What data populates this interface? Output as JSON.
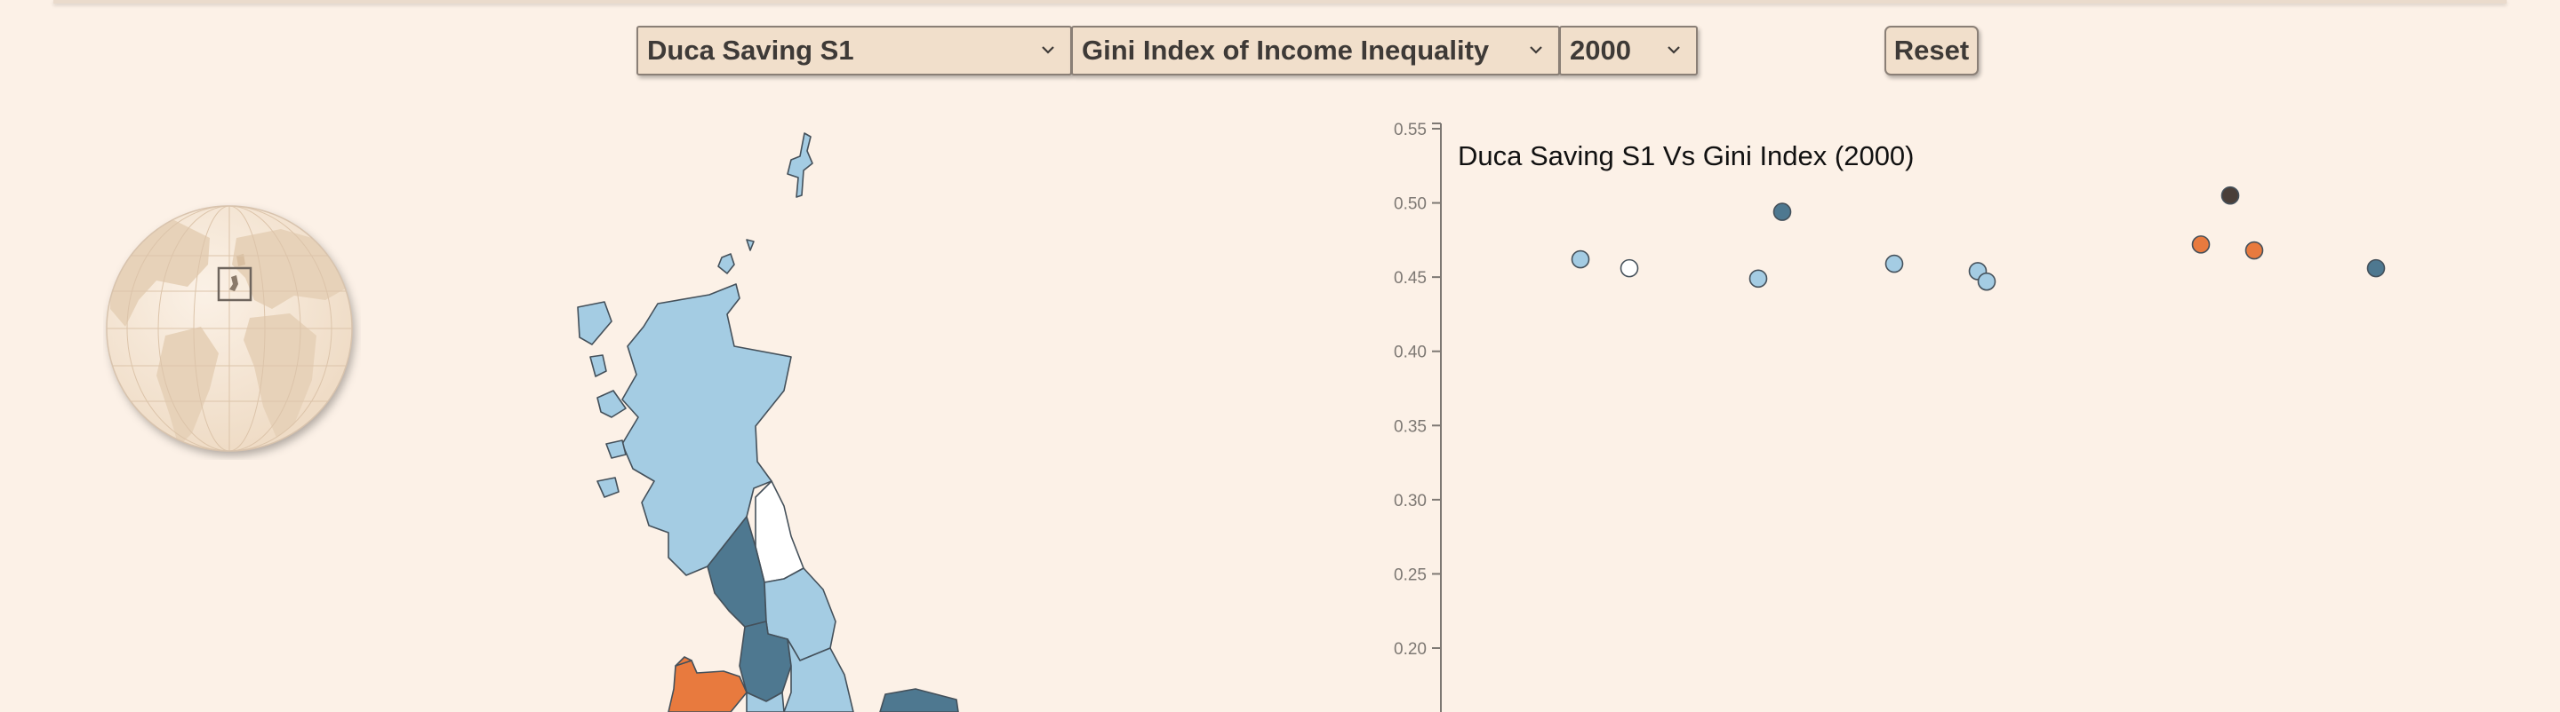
{
  "controls": {
    "variable": {
      "value": "Duca Saving S1"
    },
    "indicator": {
      "value": "Gini Index of Income Inequality"
    },
    "year": {
      "value": "2000"
    },
    "reset_label": "Reset"
  },
  "colors": {
    "background": "#fcf1e7",
    "light_blue": "#a4cce3",
    "dark_blue": "#4e7890",
    "orange": "#e87a3e",
    "dark_brown": "#4a3f39",
    "white": "#ffffff"
  },
  "chart_data": {
    "type": "scatter",
    "title": "Duca Saving S1 Vs Gini Index (2000)",
    "xlabel": "",
    "ylabel": "",
    "ylim": [
      0.15,
      0.55
    ],
    "yticks": [
      0.2,
      0.25,
      0.3,
      0.35,
      0.4,
      0.45,
      0.5,
      0.55
    ],
    "ytick_labels": [
      "0.20",
      "0.25",
      "0.30",
      "0.35",
      "0.40",
      "0.45",
      "0.50",
      "0.55"
    ],
    "x_axis_visible": false,
    "grid": false,
    "points": [
      {
        "x": 1,
        "y": 0.462,
        "color": "light_blue"
      },
      {
        "x": 2,
        "y": 0.456,
        "color": "white"
      },
      {
        "x": 3,
        "y": 0.449,
        "color": "light_blue"
      },
      {
        "x": 4,
        "y": 0.494,
        "color": "dark_blue"
      },
      {
        "x": 5,
        "y": 0.459,
        "color": "light_blue"
      },
      {
        "x": 6,
        "y": 0.454,
        "color": "light_blue"
      },
      {
        "x": 7,
        "y": 0.447,
        "color": "light_blue"
      },
      {
        "x": 8,
        "y": 0.472,
        "color": "orange"
      },
      {
        "x": 9,
        "y": 0.505,
        "color": "dark_brown"
      },
      {
        "x": 10,
        "y": 0.468,
        "color": "orange"
      },
      {
        "x": 11,
        "y": 0.456,
        "color": "dark_blue"
      }
    ]
  }
}
